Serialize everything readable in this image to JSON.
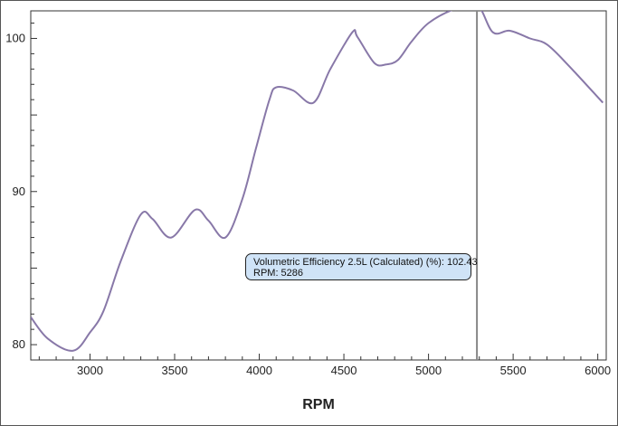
{
  "chart_data": {
    "type": "line",
    "xlabel": "RPM",
    "ylabel": "",
    "xlim": [
      2650,
      6050
    ],
    "ylim": [
      79,
      101.8
    ],
    "x_ticks": [
      3000,
      3500,
      4000,
      4500,
      5000,
      5500,
      6000
    ],
    "y_ticks": [
      80,
      90,
      100
    ],
    "grid": false,
    "line_color": "#8878a8",
    "cursor_color": "#888888",
    "series": [
      {
        "x": [
          2650,
          2750,
          2900,
          3000,
          3080,
          3180,
          3300,
          3370,
          3480,
          3620,
          3700,
          3800,
          3900,
          3980,
          4060,
          4100,
          4200,
          4320,
          4420,
          4550,
          4580,
          4680,
          4750,
          4820,
          4900,
          5000,
          5150,
          5286,
          5380,
          5480,
          5600,
          5700,
          5830,
          6030
        ],
        "values": [
          81.8,
          80.4,
          79.6,
          80.8,
          82.2,
          85.4,
          88.5,
          88.2,
          87.0,
          88.8,
          88.1,
          87.0,
          89.5,
          92.8,
          96.0,
          96.8,
          96.6,
          95.8,
          98.0,
          100.4,
          100.1,
          98.4,
          98.3,
          98.6,
          99.8,
          101.0,
          101.9,
          102.2,
          100.4,
          100.5,
          100.0,
          99.6,
          98.2,
          95.8
        ]
      }
    ],
    "cursor": {
      "x": 5286,
      "series_label": "Volumetric Efficiency 2.5L (Calculated) (%): 102.43",
      "rpm_label": "RPM: 5286"
    }
  }
}
